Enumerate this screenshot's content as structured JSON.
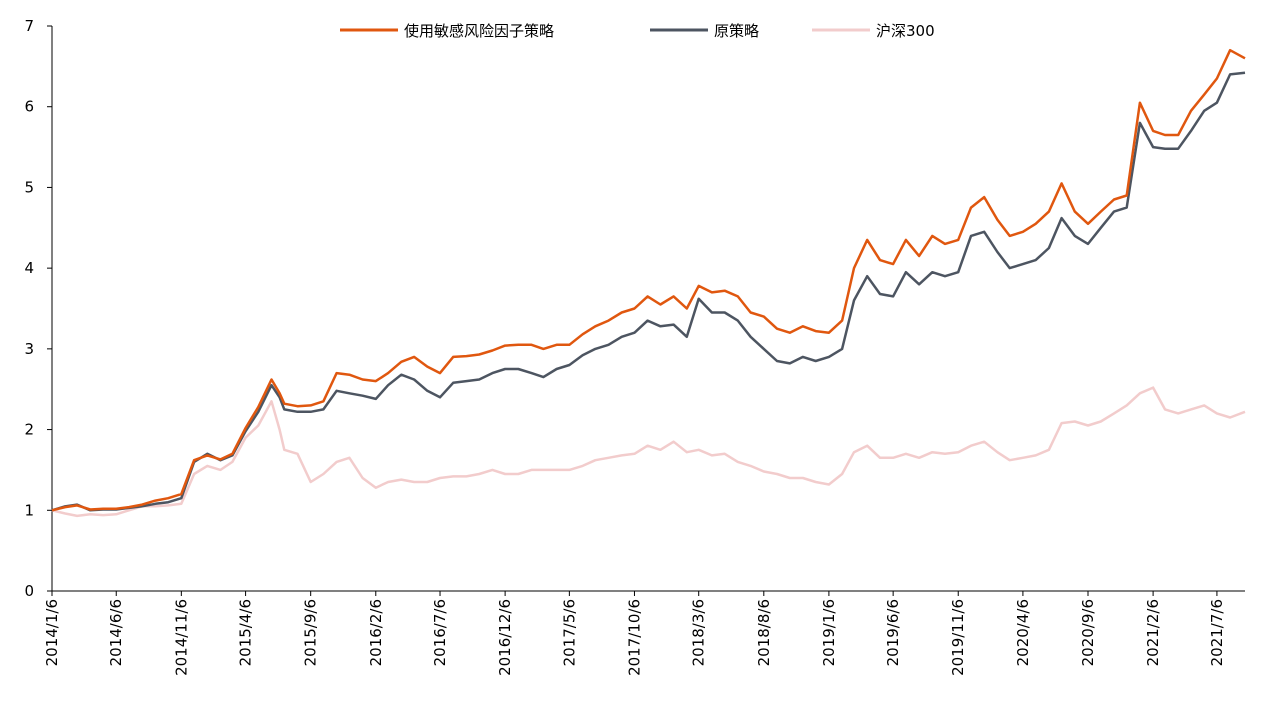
{
  "chart_data": {
    "type": "line",
    "title": "",
    "xlabel": "",
    "ylabel": "",
    "ylim": [
      0,
      7
    ],
    "yticks": [
      0,
      1,
      2,
      3,
      4,
      5,
      6,
      7
    ],
    "x_start": "2014/1/6",
    "x_end": "2021/9/10",
    "xticks": [
      "2014/1/6",
      "2014/6/6",
      "2014/11/6",
      "2015/4/6",
      "2015/9/6",
      "2016/2/6",
      "2016/7/6",
      "2016/12/6",
      "2017/5/6",
      "2017/10/6",
      "2018/3/6",
      "2018/8/6",
      "2019/1/6",
      "2019/6/6",
      "2019/11/6",
      "2020/4/6",
      "2020/9/6",
      "2021/2/6",
      "2021/7/6"
    ],
    "grid": false,
    "legend_position": "top",
    "series": [
      {
        "name": "使用敏感风险因子策略",
        "color": "#e0570f",
        "points": [
          [
            "2014/1/6",
            1.0
          ],
          [
            "2014/2/6",
            1.04
          ],
          [
            "2014/3/6",
            1.06
          ],
          [
            "2014/4/6",
            1.01
          ],
          [
            "2014/5/6",
            1.02
          ],
          [
            "2014/6/6",
            1.02
          ],
          [
            "2014/7/6",
            1.04
          ],
          [
            "2014/8/6",
            1.07
          ],
          [
            "2014/9/6",
            1.12
          ],
          [
            "2014/10/6",
            1.15
          ],
          [
            "2014/11/6",
            1.2
          ],
          [
            "2014/12/6",
            1.62
          ],
          [
            "2015/1/6",
            1.68
          ],
          [
            "2015/2/6",
            1.63
          ],
          [
            "2015/3/6",
            1.7
          ],
          [
            "2015/4/6",
            2.02
          ],
          [
            "2015/5/6",
            2.28
          ],
          [
            "2015/6/6",
            2.62
          ],
          [
            "2015/6/25",
            2.45
          ],
          [
            "2015/7/6",
            2.32
          ],
          [
            "2015/8/6",
            2.29
          ],
          [
            "2015/9/6",
            2.3
          ],
          [
            "2015/10/6",
            2.35
          ],
          [
            "2015/11/6",
            2.7
          ],
          [
            "2015/12/6",
            2.68
          ],
          [
            "2016/1/6",
            2.62
          ],
          [
            "2016/2/6",
            2.6
          ],
          [
            "2016/3/6",
            2.7
          ],
          [
            "2016/4/6",
            2.84
          ],
          [
            "2016/5/6",
            2.9
          ],
          [
            "2016/6/6",
            2.78
          ],
          [
            "2016/7/6",
            2.7
          ],
          [
            "2016/8/6",
            2.9
          ],
          [
            "2016/9/6",
            2.91
          ],
          [
            "2016/10/6",
            2.93
          ],
          [
            "2016/11/6",
            2.98
          ],
          [
            "2016/12/6",
            3.04
          ],
          [
            "2017/1/6",
            3.05
          ],
          [
            "2017/2/6",
            3.05
          ],
          [
            "2017/3/6",
            3.0
          ],
          [
            "2017/4/6",
            3.05
          ],
          [
            "2017/5/6",
            3.05
          ],
          [
            "2017/6/6",
            3.18
          ],
          [
            "2017/7/6",
            3.28
          ],
          [
            "2017/8/6",
            3.35
          ],
          [
            "2017/9/6",
            3.45
          ],
          [
            "2017/10/6",
            3.5
          ],
          [
            "2017/11/6",
            3.65
          ],
          [
            "2017/12/6",
            3.55
          ],
          [
            "2018/1/6",
            3.65
          ],
          [
            "2018/2/6",
            3.5
          ],
          [
            "2018/3/6",
            3.78
          ],
          [
            "2018/4/6",
            3.7
          ],
          [
            "2018/5/6",
            3.72
          ],
          [
            "2018/6/6",
            3.65
          ],
          [
            "2018/7/6",
            3.45
          ],
          [
            "2018/8/6",
            3.4
          ],
          [
            "2018/9/6",
            3.25
          ],
          [
            "2018/10/6",
            3.2
          ],
          [
            "2018/11/6",
            3.28
          ],
          [
            "2018/12/6",
            3.22
          ],
          [
            "2019/1/6",
            3.2
          ],
          [
            "2019/2/6",
            3.35
          ],
          [
            "2019/3/6",
            4.0
          ],
          [
            "2019/4/6",
            4.35
          ],
          [
            "2019/5/6",
            4.1
          ],
          [
            "2019/6/6",
            4.05
          ],
          [
            "2019/7/6",
            4.35
          ],
          [
            "2019/8/6",
            4.15
          ],
          [
            "2019/9/6",
            4.4
          ],
          [
            "2019/10/6",
            4.3
          ],
          [
            "2019/11/6",
            4.35
          ],
          [
            "2019/12/6",
            4.75
          ],
          [
            "2020/1/6",
            4.88
          ],
          [
            "2020/2/6",
            4.6
          ],
          [
            "2020/3/6",
            4.4
          ],
          [
            "2020/4/6",
            4.45
          ],
          [
            "2020/5/6",
            4.55
          ],
          [
            "2020/6/6",
            4.7
          ],
          [
            "2020/7/6",
            5.05
          ],
          [
            "2020/8/6",
            4.7
          ],
          [
            "2020/9/6",
            4.55
          ],
          [
            "2020/10/6",
            4.7
          ],
          [
            "2020/11/6",
            4.85
          ],
          [
            "2020/12/6",
            4.9
          ],
          [
            "2021/1/6",
            6.05
          ],
          [
            "2021/2/6",
            5.7
          ],
          [
            "2021/3/6",
            5.65
          ],
          [
            "2021/4/6",
            5.65
          ],
          [
            "2021/5/6",
            5.95
          ],
          [
            "2021/6/6",
            6.15
          ],
          [
            "2021/7/6",
            6.35
          ],
          [
            "2021/8/6",
            6.7
          ],
          [
            "2021/9/10",
            6.6
          ]
        ]
      },
      {
        "name": "原策略",
        "color": "#4d5561",
        "points": [
          [
            "2014/1/6",
            1.0
          ],
          [
            "2014/2/6",
            1.05
          ],
          [
            "2014/3/6",
            1.07
          ],
          [
            "2014/4/6",
            1.0
          ],
          [
            "2014/5/6",
            1.01
          ],
          [
            "2014/6/6",
            1.01
          ],
          [
            "2014/7/6",
            1.03
          ],
          [
            "2014/8/6",
            1.05
          ],
          [
            "2014/9/6",
            1.08
          ],
          [
            "2014/10/6",
            1.1
          ],
          [
            "2014/11/6",
            1.15
          ],
          [
            "2014/12/6",
            1.6
          ],
          [
            "2015/1/6",
            1.7
          ],
          [
            "2015/2/6",
            1.62
          ],
          [
            "2015/3/6",
            1.68
          ],
          [
            "2015/4/6",
            1.98
          ],
          [
            "2015/5/6",
            2.22
          ],
          [
            "2015/6/6",
            2.55
          ],
          [
            "2015/6/25",
            2.4
          ],
          [
            "2015/7/6",
            2.25
          ],
          [
            "2015/8/6",
            2.22
          ],
          [
            "2015/9/6",
            2.22
          ],
          [
            "2015/10/6",
            2.25
          ],
          [
            "2015/11/6",
            2.48
          ],
          [
            "2015/12/6",
            2.45
          ],
          [
            "2016/1/6",
            2.42
          ],
          [
            "2016/2/6",
            2.38
          ],
          [
            "2016/3/6",
            2.55
          ],
          [
            "2016/4/6",
            2.68
          ],
          [
            "2016/5/6",
            2.62
          ],
          [
            "2016/6/6",
            2.48
          ],
          [
            "2016/7/6",
            2.4
          ],
          [
            "2016/8/6",
            2.58
          ],
          [
            "2016/9/6",
            2.6
          ],
          [
            "2016/10/6",
            2.62
          ],
          [
            "2016/11/6",
            2.7
          ],
          [
            "2016/12/6",
            2.75
          ],
          [
            "2017/1/6",
            2.75
          ],
          [
            "2017/2/6",
            2.7
          ],
          [
            "2017/3/6",
            2.65
          ],
          [
            "2017/4/6",
            2.75
          ],
          [
            "2017/5/6",
            2.8
          ],
          [
            "2017/6/6",
            2.92
          ],
          [
            "2017/7/6",
            3.0
          ],
          [
            "2017/8/6",
            3.05
          ],
          [
            "2017/9/6",
            3.15
          ],
          [
            "2017/10/6",
            3.2
          ],
          [
            "2017/11/6",
            3.35
          ],
          [
            "2017/12/6",
            3.28
          ],
          [
            "2018/1/6",
            3.3
          ],
          [
            "2018/2/6",
            3.15
          ],
          [
            "2018/3/6",
            3.62
          ],
          [
            "2018/4/6",
            3.45
          ],
          [
            "2018/5/6",
            3.45
          ],
          [
            "2018/6/6",
            3.35
          ],
          [
            "2018/7/6",
            3.15
          ],
          [
            "2018/8/6",
            3.0
          ],
          [
            "2018/9/6",
            2.85
          ],
          [
            "2018/10/6",
            2.82
          ],
          [
            "2018/11/6",
            2.9
          ],
          [
            "2018/12/6",
            2.85
          ],
          [
            "2019/1/6",
            2.9
          ],
          [
            "2019/2/6",
            3.0
          ],
          [
            "2019/3/6",
            3.6
          ],
          [
            "2019/4/6",
            3.9
          ],
          [
            "2019/5/6",
            3.68
          ],
          [
            "2019/6/6",
            3.65
          ],
          [
            "2019/7/6",
            3.95
          ],
          [
            "2019/8/6",
            3.8
          ],
          [
            "2019/9/6",
            3.95
          ],
          [
            "2019/10/6",
            3.9
          ],
          [
            "2019/11/6",
            3.95
          ],
          [
            "2019/12/6",
            4.4
          ],
          [
            "2020/1/6",
            4.45
          ],
          [
            "2020/2/6",
            4.2
          ],
          [
            "2020/3/6",
            4.0
          ],
          [
            "2020/4/6",
            4.05
          ],
          [
            "2020/5/6",
            4.1
          ],
          [
            "2020/6/6",
            4.25
          ],
          [
            "2020/7/6",
            4.62
          ],
          [
            "2020/8/6",
            4.4
          ],
          [
            "2020/9/6",
            4.3
          ],
          [
            "2020/10/6",
            4.5
          ],
          [
            "2020/11/6",
            4.7
          ],
          [
            "2020/12/6",
            4.75
          ],
          [
            "2021/1/6",
            5.8
          ],
          [
            "2021/2/6",
            5.5
          ],
          [
            "2021/3/6",
            5.48
          ],
          [
            "2021/4/6",
            5.48
          ],
          [
            "2021/5/6",
            5.7
          ],
          [
            "2021/6/6",
            5.95
          ],
          [
            "2021/7/6",
            6.05
          ],
          [
            "2021/8/6",
            6.4
          ],
          [
            "2021/9/10",
            6.42
          ]
        ]
      },
      {
        "name": "沪深300",
        "color": "#f2cccc",
        "points": [
          [
            "2014/1/6",
            1.0
          ],
          [
            "2014/2/6",
            0.96
          ],
          [
            "2014/3/6",
            0.93
          ],
          [
            "2014/4/6",
            0.95
          ],
          [
            "2014/5/6",
            0.94
          ],
          [
            "2014/6/6",
            0.95
          ],
          [
            "2014/7/6",
            1.0
          ],
          [
            "2014/8/6",
            1.05
          ],
          [
            "2014/9/6",
            1.05
          ],
          [
            "2014/10/6",
            1.06
          ],
          [
            "2014/11/6",
            1.08
          ],
          [
            "2014/12/6",
            1.45
          ],
          [
            "2015/1/6",
            1.55
          ],
          [
            "2015/2/6",
            1.5
          ],
          [
            "2015/3/6",
            1.6
          ],
          [
            "2015/4/6",
            1.9
          ],
          [
            "2015/5/6",
            2.05
          ],
          [
            "2015/6/6",
            2.35
          ],
          [
            "2015/6/25",
            2.0
          ],
          [
            "2015/7/6",
            1.75
          ],
          [
            "2015/8/6",
            1.7
          ],
          [
            "2015/9/6",
            1.35
          ],
          [
            "2015/10/6",
            1.45
          ],
          [
            "2015/11/6",
            1.6
          ],
          [
            "2015/12/6",
            1.65
          ],
          [
            "2016/1/6",
            1.4
          ],
          [
            "2016/2/6",
            1.28
          ],
          [
            "2016/3/6",
            1.35
          ],
          [
            "2016/4/6",
            1.38
          ],
          [
            "2016/5/6",
            1.35
          ],
          [
            "2016/6/6",
            1.35
          ],
          [
            "2016/7/6",
            1.4
          ],
          [
            "2016/8/6",
            1.42
          ],
          [
            "2016/9/6",
            1.42
          ],
          [
            "2016/10/6",
            1.45
          ],
          [
            "2016/11/6",
            1.5
          ],
          [
            "2016/12/6",
            1.45
          ],
          [
            "2017/1/6",
            1.45
          ],
          [
            "2017/2/6",
            1.5
          ],
          [
            "2017/3/6",
            1.5
          ],
          [
            "2017/4/6",
            1.5
          ],
          [
            "2017/5/6",
            1.5
          ],
          [
            "2017/6/6",
            1.55
          ],
          [
            "2017/7/6",
            1.62
          ],
          [
            "2017/8/6",
            1.65
          ],
          [
            "2017/9/6",
            1.68
          ],
          [
            "2017/10/6",
            1.7
          ],
          [
            "2017/11/6",
            1.8
          ],
          [
            "2017/12/6",
            1.75
          ],
          [
            "2018/1/6",
            1.85
          ],
          [
            "2018/2/6",
            1.72
          ],
          [
            "2018/3/6",
            1.75
          ],
          [
            "2018/4/6",
            1.68
          ],
          [
            "2018/5/6",
            1.7
          ],
          [
            "2018/6/6",
            1.6
          ],
          [
            "2018/7/6",
            1.55
          ],
          [
            "2018/8/6",
            1.48
          ],
          [
            "2018/9/6",
            1.45
          ],
          [
            "2018/10/6",
            1.4
          ],
          [
            "2018/11/6",
            1.4
          ],
          [
            "2018/12/6",
            1.35
          ],
          [
            "2019/1/6",
            1.32
          ],
          [
            "2019/2/6",
            1.45
          ],
          [
            "2019/3/6",
            1.72
          ],
          [
            "2019/4/6",
            1.8
          ],
          [
            "2019/5/6",
            1.65
          ],
          [
            "2019/6/6",
            1.65
          ],
          [
            "2019/7/6",
            1.7
          ],
          [
            "2019/8/6",
            1.65
          ],
          [
            "2019/9/6",
            1.72
          ],
          [
            "2019/10/6",
            1.7
          ],
          [
            "2019/11/6",
            1.72
          ],
          [
            "2019/12/6",
            1.8
          ],
          [
            "2020/1/6",
            1.85
          ],
          [
            "2020/2/6",
            1.72
          ],
          [
            "2020/3/6",
            1.62
          ],
          [
            "2020/4/6",
            1.65
          ],
          [
            "2020/5/6",
            1.68
          ],
          [
            "2020/6/6",
            1.75
          ],
          [
            "2020/7/6",
            2.08
          ],
          [
            "2020/8/6",
            2.1
          ],
          [
            "2020/9/6",
            2.05
          ],
          [
            "2020/10/6",
            2.1
          ],
          [
            "2020/11/6",
            2.2
          ],
          [
            "2020/12/6",
            2.3
          ],
          [
            "2021/1/6",
            2.45
          ],
          [
            "2021/2/6",
            2.52
          ],
          [
            "2021/3/6",
            2.25
          ],
          [
            "2021/4/6",
            2.2
          ],
          [
            "2021/5/6",
            2.25
          ],
          [
            "2021/6/6",
            2.3
          ],
          [
            "2021/7/6",
            2.2
          ],
          [
            "2021/8/6",
            2.15
          ],
          [
            "2021/9/10",
            2.22
          ]
        ]
      }
    ]
  }
}
